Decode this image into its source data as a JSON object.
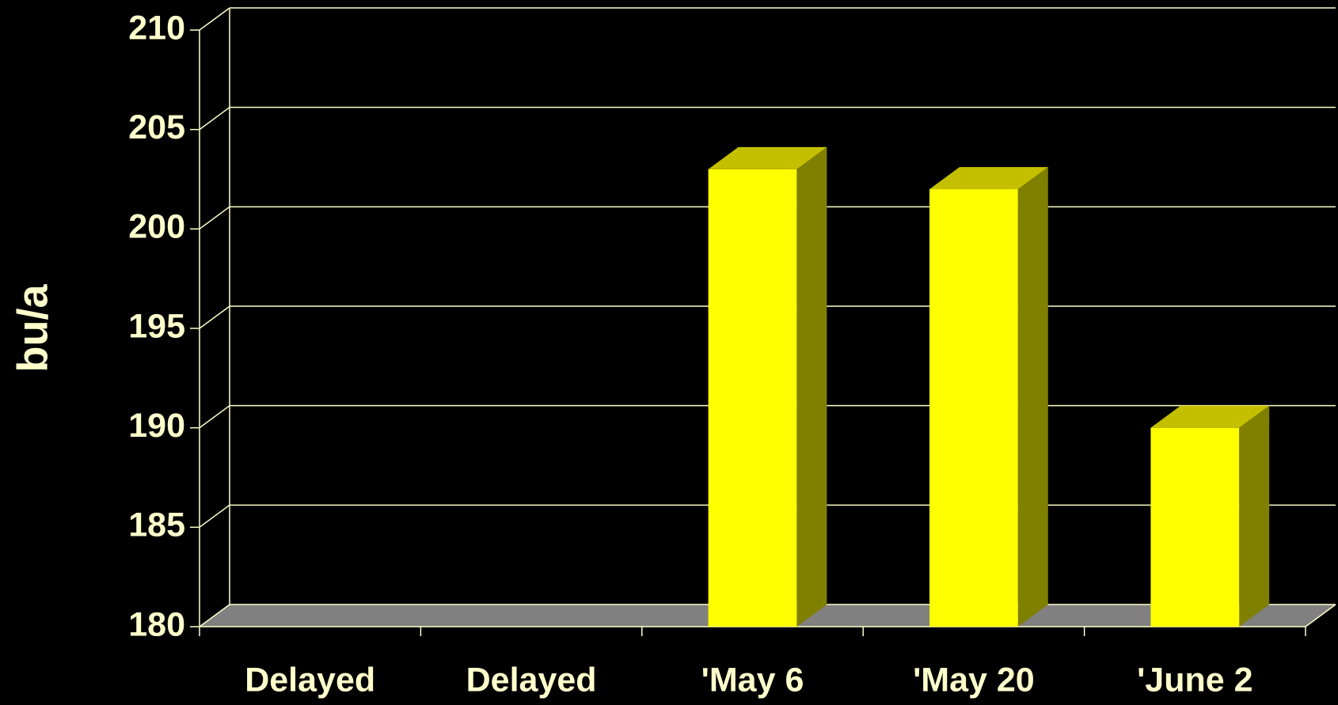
{
  "chart_data": {
    "type": "bar3d",
    "y_label": "bu/a",
    "categories": [
      "Delayed",
      "Delayed",
      "'May 6",
      "'May 20",
      "'June 2"
    ],
    "values": [
      null,
      null,
      203,
      202,
      190
    ],
    "color": "#ffff00",
    "ylim": [
      180,
      210
    ],
    "yticks": [
      180,
      185,
      190,
      195,
      200,
      205,
      210
    ],
    "grid": true
  }
}
